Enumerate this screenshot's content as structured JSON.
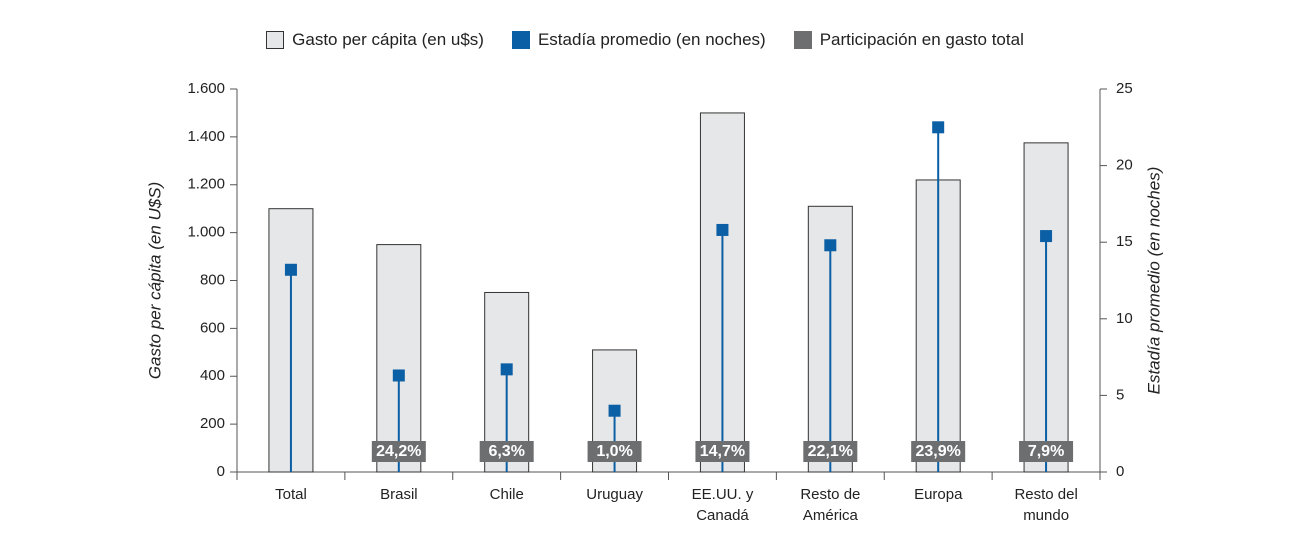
{
  "chart_data": {
    "type": "bar",
    "categories": [
      "Total",
      "Brasil",
      "Chile",
      "Uruguay",
      "EE.UU. y\nCanadá",
      "Resto de\nAmérica",
      "Europa",
      "Resto del\nmundo"
    ],
    "y_label": "Gasto per cápita (en U$S)",
    "y2_label": "Estadía promedio (en noches)",
    "ylim": [
      0,
      1600
    ],
    "yticks": [
      0,
      200,
      400,
      600,
      800,
      {
        "value": 1000,
        "label": "1.000"
      },
      {
        "value": 1200,
        "label": "1.200"
      },
      {
        "value": 1400,
        "label": "1.400"
      },
      {
        "value": 1600,
        "label": "1.600"
      }
    ],
    "y2lim": [
      0,
      25
    ],
    "y2ticks": [
      0,
      5,
      10,
      15,
      20,
      25
    ],
    "series": [
      {
        "name": "Gasto per cápita (en u$s)",
        "type": "bar",
        "color": "#e6e7e8",
        "values": [
          1100,
          950,
          750,
          510,
          1500,
          1110,
          1220,
          1375
        ]
      },
      {
        "name": "Estadía promedio (en noches)",
        "type": "lollipop",
        "axis": "y2",
        "color": "#0b5fa5",
        "values": [
          13.2,
          6.3,
          6.7,
          4.0,
          15.8,
          14.8,
          22.5,
          15.4
        ]
      },
      {
        "name": "Participación en gasto total",
        "type": "label",
        "color": "#6d6e70",
        "values": [
          null,
          24.2,
          6.3,
          1.0,
          14.7,
          22.1,
          23.9,
          7.9
        ],
        "value_labels": [
          null,
          "24,2%",
          "6,3%",
          "1,0%",
          "14,7%",
          "22,1%",
          "23,9%",
          "7,9%"
        ]
      }
    ]
  }
}
